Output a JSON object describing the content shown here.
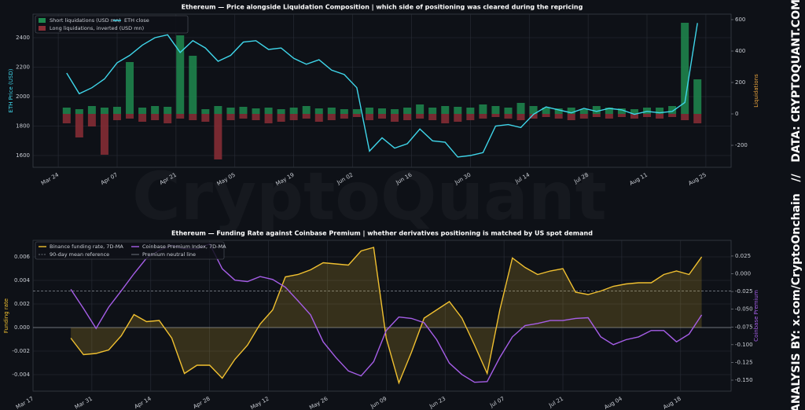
{
  "watermark": "CryptoQuant",
  "side_text": "ANALYSIS BY: x.com/CryptoOnchain   //   DATA: CRYPTOQUANT.COM",
  "chart_data": [
    {
      "type": "combo",
      "title": "Ethereum — Price alongside Liquidation Composition  |  which side of positioning was cleared during the repricing",
      "ylabel": "ETH Price (USD)",
      "y2label": "Liquidations",
      "ylabel_color": "#3fd6ea",
      "y2label_color": "#e8a33d",
      "x": [
        "Mar 26",
        "Mar 29",
        "Apr 01",
        "Apr 04",
        "Apr 07",
        "Apr 10",
        "Apr 13",
        "Apr 16",
        "Apr 19",
        "Apr 22",
        "Apr 25",
        "Apr 28",
        "May 01",
        "May 04",
        "May 07",
        "May 10",
        "May 13",
        "May 16",
        "May 19",
        "May 22",
        "May 25",
        "May 28",
        "May 31",
        "Jun 03",
        "Jun 06",
        "Jun 09",
        "Jun 12",
        "Jun 15",
        "Jun 18",
        "Jun 21",
        "Jun 24",
        "Jun 27",
        "Jun 30",
        "Jul 03",
        "Jul 06",
        "Jul 09",
        "Jul 12",
        "Jul 15",
        "Jul 18",
        "Jul 21",
        "Jul 24",
        "Jul 27",
        "Jul 30",
        "Aug 02",
        "Aug 05",
        "Aug 08",
        "Aug 11",
        "Aug 14",
        "Aug 17",
        "Aug 20",
        "Aug 23"
      ],
      "xlim": [
        "Mar 18",
        "Aug 31"
      ],
      "xticks": [
        "Mar 24",
        "Apr 07",
        "Apr 21",
        "May 05",
        "May 19",
        "Jun 02",
        "Jun 16",
        "Jun 30",
        "Jul 14",
        "Jul 28",
        "Aug 11",
        "Aug 25"
      ],
      "ylim": [
        1520,
        2560
      ],
      "yticks": [
        1600,
        1800,
        2000,
        2200,
        2400
      ],
      "y2lim": [
        -340,
        635
      ],
      "y2ticks": [
        -200,
        0,
        200,
        400,
        600
      ],
      "grid": true,
      "series": [
        {
          "name": "Short liquidations (USD mn)",
          "type": "bar",
          "axis": "y2",
          "color": "#1f8a4f",
          "values": [
            40,
            30,
            50,
            40,
            45,
            330,
            40,
            50,
            45,
            500,
            370,
            30,
            50,
            40,
            45,
            35,
            40,
            30,
            40,
            50,
            35,
            40,
            30,
            30,
            40,
            35,
            30,
            40,
            60,
            40,
            50,
            45,
            40,
            60,
            50,
            40,
            70,
            50,
            40,
            35,
            40,
            30,
            50,
            40,
            35,
            30,
            40,
            40,
            50,
            580,
            220
          ]
        },
        {
          "name": "Long liquidations, inverted (USD mn)",
          "type": "bar",
          "axis": "y2",
          "color": "#8b2e36",
          "values": [
            -60,
            -150,
            -80,
            -260,
            -40,
            -30,
            -50,
            -40,
            -60,
            -30,
            -40,
            -50,
            -290,
            -40,
            -30,
            -40,
            -60,
            -50,
            -40,
            -30,
            -50,
            -40,
            -30,
            -20,
            -40,
            -30,
            -50,
            -40,
            -30,
            -40,
            -60,
            -50,
            -40,
            -30,
            -20,
            -30,
            -40,
            -30,
            -20,
            -30,
            -40,
            -30,
            -20,
            -30,
            -20,
            -30,
            -20,
            -30,
            -20,
            -40,
            -60
          ]
        },
        {
          "name": "ETH close",
          "type": "line",
          "color": "#3fd6ea",
          "values": [
            2160,
            2020,
            2060,
            2120,
            2230,
            2280,
            2350,
            2400,
            2420,
            2300,
            2380,
            2330,
            2240,
            2280,
            2370,
            2380,
            2320,
            2330,
            2260,
            2220,
            2250,
            2180,
            2150,
            2060,
            1630,
            1720,
            1650,
            1680,
            1780,
            1700,
            1690,
            1590,
            1600,
            1620,
            1800,
            1810,
            1790,
            1880,
            1930,
            1910,
            1890,
            1920,
            1900,
            1920,
            1910,
            1880,
            1900,
            1890,
            1900,
            1960,
            2500
          ]
        }
      ]
    },
    {
      "type": "combo",
      "title": "Ethereum — Funding Rate against Coinbase Premium  |  whether derivatives positioning is matched by US spot demand",
      "ylabel": "Funding rate",
      "y2label": "Coinbase Premium",
      "ylabel_color": "#f0c030",
      "y2label_color": "#a65ee8",
      "x": [
        "Mar 26",
        "Mar 29",
        "Apr 01",
        "Apr 04",
        "Apr 07",
        "Apr 10",
        "Apr 13",
        "Apr 16",
        "Apr 19",
        "Apr 22",
        "Apr 25",
        "Apr 28",
        "May 01",
        "May 04",
        "May 07",
        "May 10",
        "May 13",
        "May 16",
        "May 19",
        "May 22",
        "May 25",
        "May 28",
        "May 31",
        "Jun 03",
        "Jun 06",
        "Jun 09",
        "Jun 12",
        "Jun 15",
        "Jun 18",
        "Jun 21",
        "Jun 24",
        "Jun 27",
        "Jun 30",
        "Jul 03",
        "Jul 06",
        "Jul 09",
        "Jul 12",
        "Jul 15",
        "Jul 18",
        "Jul 21",
        "Jul 24",
        "Jul 27",
        "Jul 30",
        "Aug 02",
        "Aug 05",
        "Aug 08",
        "Aug 11",
        "Aug 14",
        "Aug 17",
        "Aug 20",
        "Aug 23"
      ],
      "xlim": [
        "Mar 17",
        "Aug 30"
      ],
      "xticks": [
        "Mar 17",
        "Mar 31",
        "Apr 14",
        "Apr 28",
        "May 12",
        "May 26",
        "Jun 09",
        "Jun 23",
        "Jul 07",
        "Jul 21",
        "Aug 04",
        "Aug 18"
      ],
      "ylim": [
        -0.0054,
        0.0074
      ],
      "yticks": [
        -0.004,
        -0.002,
        {
          "value": 0,
          "label": "0.000"
        },
        0.002,
        0.004,
        0.006
      ],
      "y2lim": [
        -0.1655,
        0.0471
      ],
      "y2ticks": [
        {
          "value": -0.15,
          "label": "-0.150"
        },
        -0.125,
        {
          "value": -0.1,
          "label": "-0.100"
        },
        -0.075,
        {
          "value": -0.05,
          "label": "-0.050"
        },
        -0.025,
        {
          "value": 0,
          "label": "0.000"
        },
        0.025
      ],
      "grid": true,
      "series": [
        {
          "name": "Binance funding rate, 7D-MA",
          "type": "area",
          "color": "#f0c030",
          "values": [
            -0.0009,
            -0.0023,
            -0.0022,
            -0.0019,
            -0.0007,
            0.0011,
            0.0005,
            0.0006,
            -0.0009,
            -0.0039,
            -0.0032,
            -0.0032,
            -0.0043,
            -0.0027,
            -0.0015,
            0.0003,
            0.0015,
            0.0043,
            0.0045,
            0.0049,
            0.0055,
            0.0054,
            0.0053,
            0.0065,
            0.0068,
            -0.0009,
            -0.0047,
            -0.0021,
            0.0008,
            0.0015,
            0.0022,
            0.0008,
            -0.0015,
            -0.0039,
            0.0015,
            0.0059,
            0.0051,
            0.0045,
            0.0048,
            0.005,
            0.003,
            0.0028,
            0.0031,
            0.0035,
            0.0037,
            0.0038,
            0.0038,
            0.0045,
            0.0048,
            0.0045,
            0.006
          ]
        },
        {
          "name": "Coinbase Premium Index, 7D-MA",
          "type": "line",
          "axis": "y2",
          "color": "#a65ee8",
          "values": [
            -0.022,
            -0.049,
            -0.077,
            -0.047,
            -0.024,
            0.0,
            0.022,
            0.033,
            0.04,
            0.035,
            0.035,
            0.042,
            0.007,
            -0.009,
            -0.011,
            -0.004,
            -0.008,
            -0.019,
            -0.038,
            -0.058,
            -0.096,
            -0.118,
            -0.137,
            -0.144,
            -0.124,
            -0.08,
            -0.061,
            -0.063,
            -0.069,
            -0.093,
            -0.126,
            -0.142,
            -0.153,
            -0.152,
            -0.118,
            -0.089,
            -0.073,
            -0.07,
            -0.066,
            -0.066,
            -0.063,
            -0.062,
            -0.089,
            -0.1,
            -0.093,
            -0.089,
            -0.08,
            -0.08,
            -0.096,
            -0.085,
            -0.058
          ]
        }
      ],
      "reference_lines": [
        {
          "name": "90-day mean reference",
          "value": 0.0031,
          "style": "dashed",
          "color": "#8a8f98"
        },
        {
          "name": "Premium neutral line",
          "value": 0,
          "style": "solid",
          "color": "#8a8f98"
        }
      ]
    }
  ]
}
